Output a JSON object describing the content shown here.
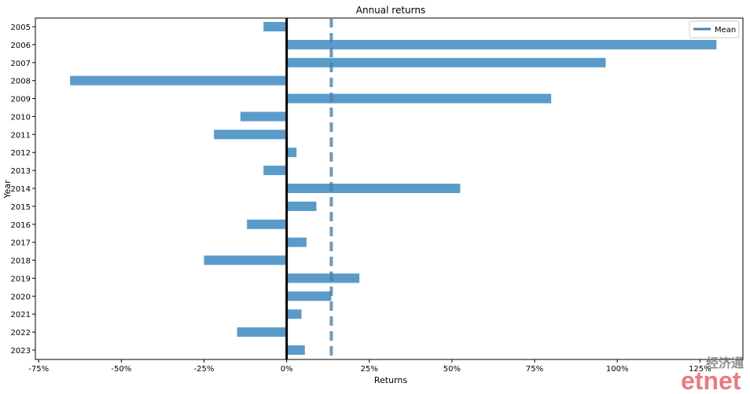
{
  "chart_data": {
    "type": "bar",
    "orientation": "horizontal",
    "title": "Annual returns",
    "xlabel": "Returns",
    "ylabel": "Year",
    "xlim": [
      -0.76,
      1.38
    ],
    "categories": [
      "2005",
      "2006",
      "2007",
      "2008",
      "2009",
      "2010",
      "2011",
      "2012",
      "2013",
      "2014",
      "2015",
      "2016",
      "2017",
      "2018",
      "2019",
      "2020",
      "2021",
      "2022",
      "2023"
    ],
    "series": [
      {
        "name": "",
        "color": "#5b9bc9",
        "values": [
          -0.07,
          1.3,
          0.965,
          -0.655,
          0.8,
          -0.14,
          -0.22,
          0.03,
          -0.07,
          0.525,
          0.09,
          -0.12,
          0.06,
          -0.25,
          0.22,
          0.135,
          0.045,
          -0.15,
          0.055
        ]
      }
    ],
    "x_ticks": [
      -0.75,
      -0.5,
      -0.25,
      0,
      0.25,
      0.5,
      0.75,
      1.0,
      1.25
    ],
    "x_tick_labels": [
      "-75%",
      "-50%",
      "-25%",
      "0%",
      "25%",
      "50%",
      "75%",
      "100%",
      "125%"
    ],
    "zero_line": {
      "x": 0,
      "color": "#000000"
    },
    "mean_line": {
      "x": 0.135,
      "color": "#4a82a8",
      "style": "dashed",
      "label": "Mean"
    },
    "legend": {
      "position": "top-right",
      "entries": [
        "Mean"
      ]
    },
    "grid": false
  },
  "watermark": {
    "cn_text": "经济通",
    "logo_text": "etnet"
  }
}
